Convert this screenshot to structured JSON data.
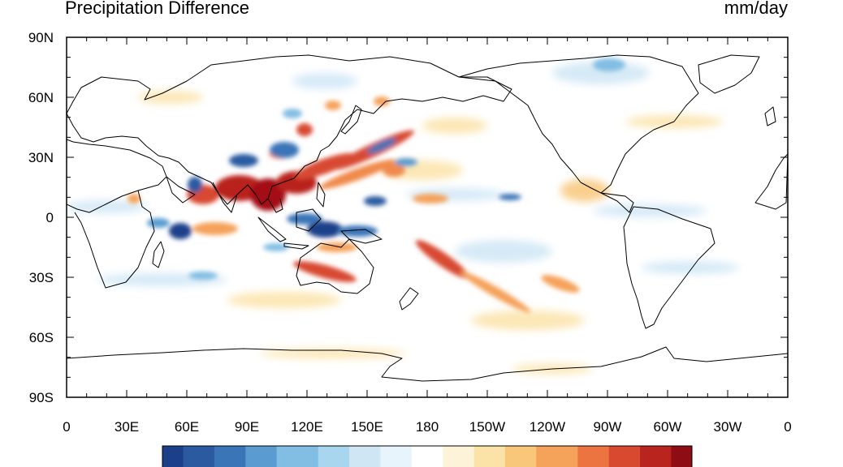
{
  "header": {
    "title": "Precipitation Difference",
    "units": "mm/day"
  },
  "map": {
    "projection": "cylindrical-equidistant",
    "lon_range": [
      0,
      360
    ],
    "lat_range": [
      -90,
      90
    ],
    "center_lon": 180,
    "x_tick_labels": [
      "0",
      "30E",
      "60E",
      "90E",
      "120E",
      "150E",
      "180",
      "150W",
      "120W",
      "90W",
      "60W",
      "30W",
      "0"
    ],
    "y_tick_labels": [
      "90N",
      "60N",
      "30N",
      "0",
      "30S",
      "60S",
      "90S"
    ],
    "colors": {
      "strong_negative": "#1c3f8a",
      "negative": "#5a9bd0",
      "weak_negative": "#cfe6f5",
      "weak_positive": "#fbe3a8",
      "positive": "#f08a4b",
      "strong_positive": "#a50f15",
      "coastline": "#000000"
    }
  },
  "colorbar": {
    "palette": [
      "#1c3f8a",
      "#2c5aa0",
      "#3a75b8",
      "#5a9bd0",
      "#82bde3",
      "#a9d6ef",
      "#cfe6f5",
      "#e8f4fb",
      "#ffffff",
      "#fdf3d8",
      "#fbe3a8",
      "#f8c77a",
      "#f5a25a",
      "#ec7440",
      "#d84a30",
      "#b9241f",
      "#8e0c14"
    ]
  }
}
